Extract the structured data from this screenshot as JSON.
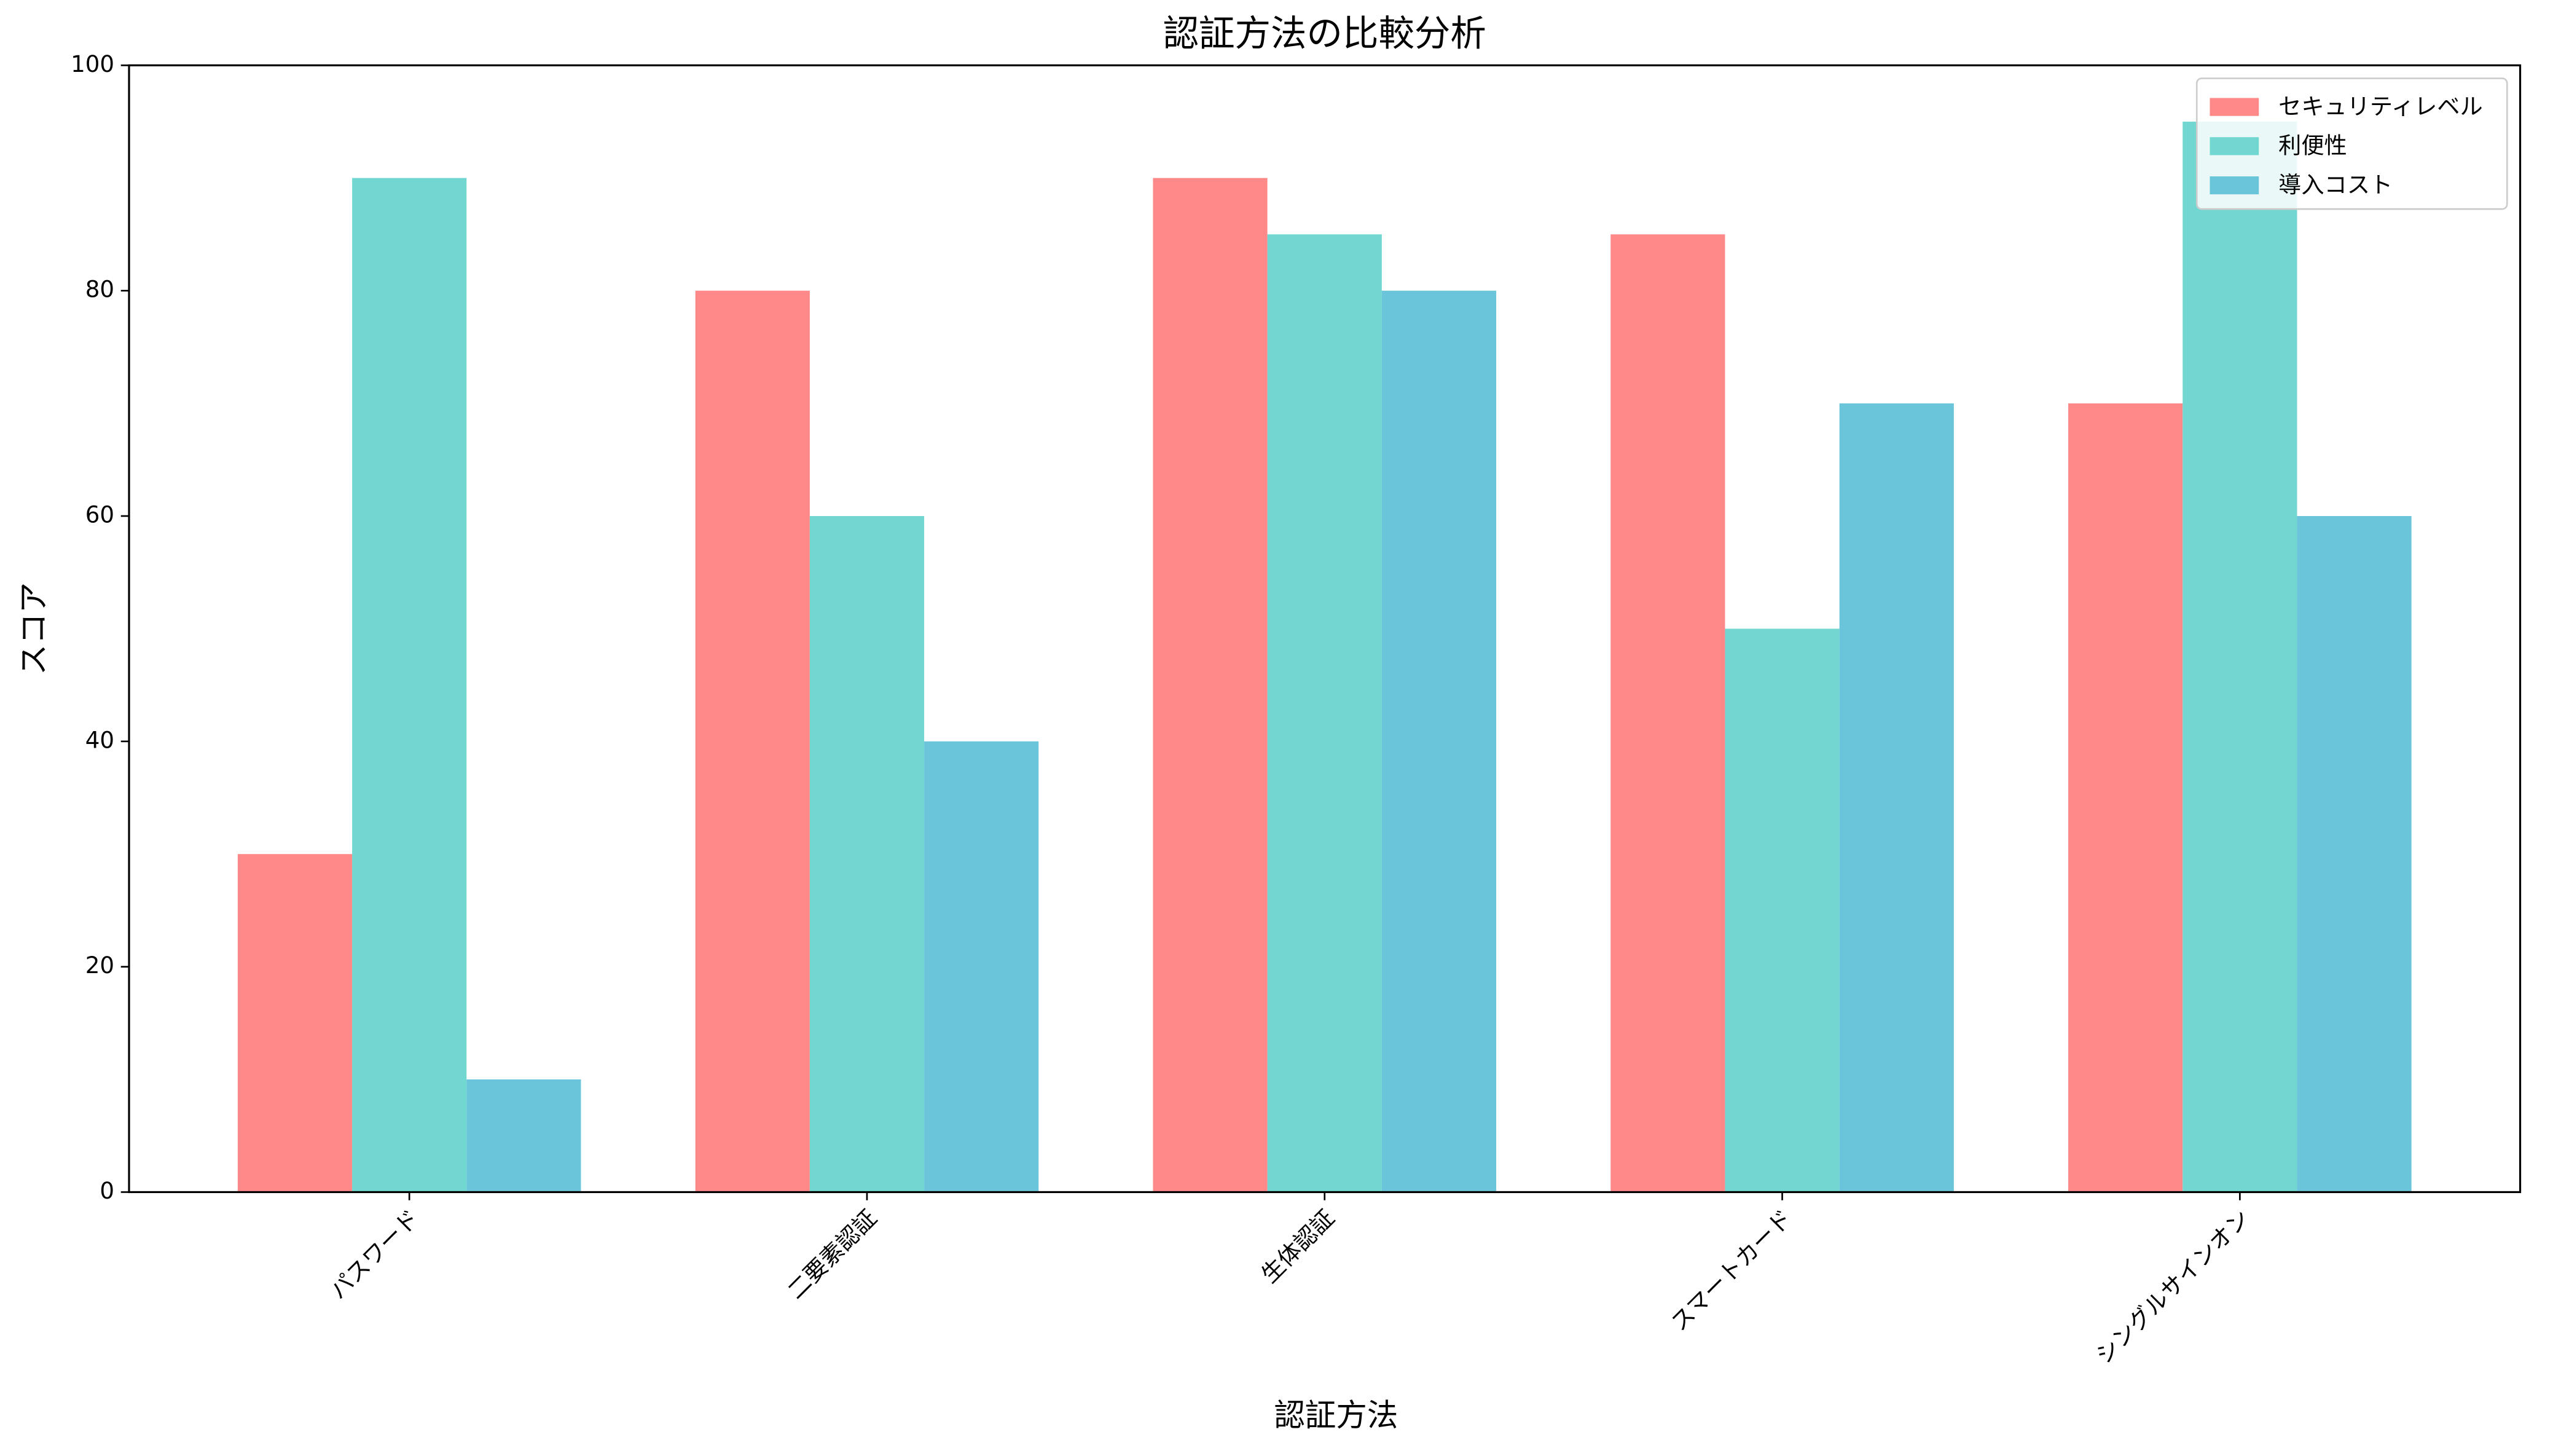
{
  "chart_data": {
    "type": "bar",
    "title": "認証方法の比較分析",
    "xlabel": "認証方法",
    "ylabel": "スコア",
    "categories": [
      "パスワード",
      "二要素認証",
      "生体認証",
      "スマートカード",
      "シングルサインオン"
    ],
    "series": [
      {
        "name": "セキュリティレベル",
        "color": "#ff8989",
        "values": [
          30,
          80,
          90,
          85,
          70
        ]
      },
      {
        "name": "利便性",
        "color": "#71d7d0",
        "values": [
          90,
          60,
          85,
          50,
          95
        ]
      },
      {
        "name": "導入コスト",
        "color": "#6ac5da",
        "values": [
          10,
          40,
          80,
          70,
          60
        ]
      }
    ],
    "ylim": [
      0,
      100
    ],
    "yticks": [
      0,
      20,
      40,
      60,
      80,
      100
    ],
    "legend": "upper right"
  }
}
